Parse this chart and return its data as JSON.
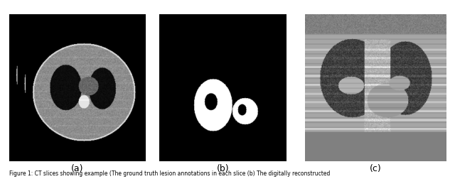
{
  "caption_text": "Figure 1: CT slices showing example (The ground truth lesion annotations in each slice (b) The digitally reconstructed",
  "subfig_labels": [
    "(a)",
    "(b)",
    "(c)"
  ],
  "background_color": "#ffffff",
  "figsize": [
    6.4,
    2.52
  ],
  "dpi": 100
}
